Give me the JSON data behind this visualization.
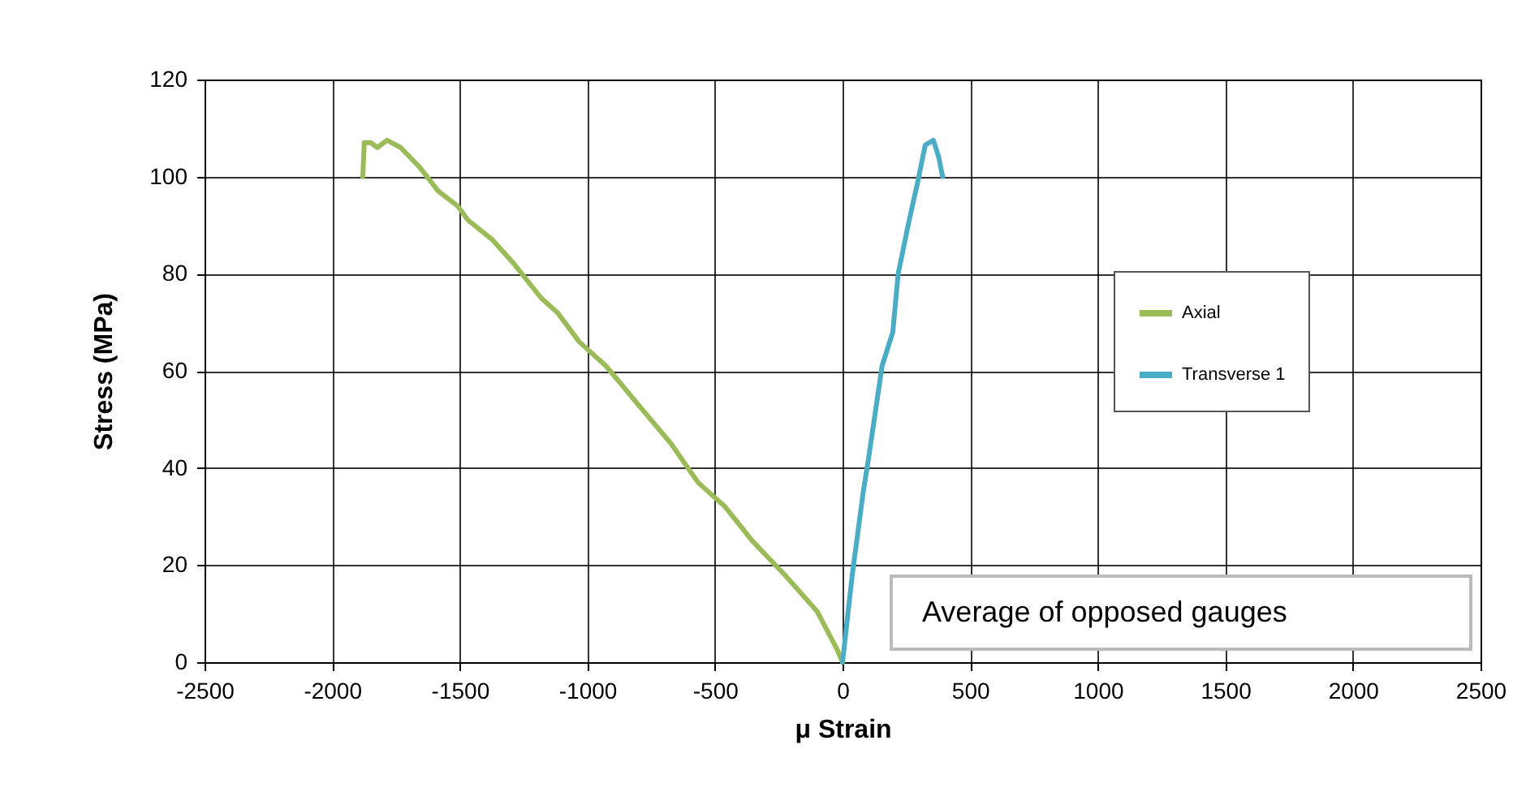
{
  "chart_data": {
    "type": "line",
    "xlabel": "μ Strain",
    "ylabel": "Stress (MPa)",
    "xlim": [
      -2500,
      2500
    ],
    "xticks": [
      -2500,
      -2000,
      -1500,
      -1000,
      -500,
      0,
      500,
      1000,
      1500,
      2000,
      2500
    ],
    "ylim": [
      0,
      120
    ],
    "yticks": [
      0,
      20,
      40,
      60,
      80,
      100,
      120
    ],
    "grid": true,
    "legend": "right",
    "marker": "none",
    "line_style": "solid",
    "annotations": [
      "Average of opposed gauges"
    ],
    "series": [
      {
        "name": "Axial",
        "color": "#9bbb59",
        "x": [
          -1880,
          -1874,
          -1849,
          -1823,
          -1785,
          -1732,
          -1658,
          -1584,
          -1509,
          -1467,
          -1372,
          -1287,
          -1181,
          -1117,
          -1032,
          -927,
          -800,
          -672,
          -566,
          -460,
          -354,
          -227,
          -100,
          -25,
          0
        ],
        "values": [
          100,
          107,
          107,
          106,
          107.5,
          106,
          102,
          97,
          94,
          91,
          87,
          82,
          75,
          72,
          66,
          61,
          53,
          45,
          37,
          32,
          25,
          18,
          10.5,
          3,
          0
        ]
      },
      {
        "name": "Transverse 1",
        "color": "#4bacc6",
        "x": [
          0,
          38,
          81,
          102,
          155,
          197,
          218,
          261,
          293,
          324,
          356,
          377,
          392
        ],
        "values": [
          0,
          18,
          35,
          42,
          61,
          68,
          80,
          91,
          98.5,
          106.5,
          107.5,
          104,
          100
        ]
      }
    ]
  }
}
